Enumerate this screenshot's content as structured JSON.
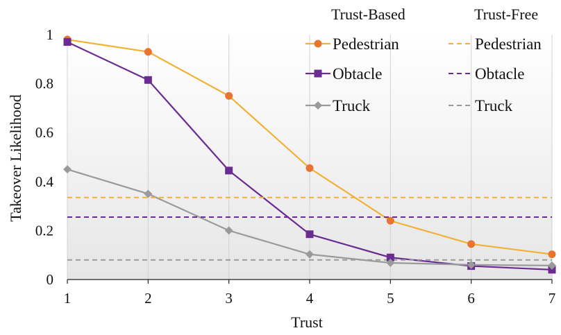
{
  "chart_data": {
    "type": "line",
    "xlabel": "Trust",
    "ylabel": "Takeover Likelihood",
    "x": [
      1,
      2,
      3,
      4,
      5,
      6,
      7
    ],
    "xlim": [
      1,
      7
    ],
    "ylim": [
      0,
      1
    ],
    "x_ticks": [
      "1",
      "2",
      "3",
      "4",
      "5",
      "6",
      "7"
    ],
    "y_ticks": [
      {
        "value": 0,
        "label": "0"
      },
      {
        "value": 0.2,
        "label": "0.2"
      },
      {
        "value": 0.4,
        "label": "0.4"
      },
      {
        "value": 0.6,
        "label": "0.6"
      },
      {
        "value": 0.8,
        "label": "0.8"
      },
      {
        "value": 1,
        "label": "1"
      }
    ],
    "grid": "vertical",
    "legend": {
      "trust_based_heading": "Trust-Based",
      "trust_free_heading": "Trust-Free",
      "placement": "top-right"
    },
    "series": [
      {
        "name": "Pedestrian",
        "group": "Trust-Based",
        "style": "solid",
        "marker": "circle",
        "color": "#F2B134",
        "marker_color": "#E8742F",
        "values": [
          0.98,
          0.93,
          0.75,
          0.455,
          0.24,
          0.145,
          0.103
        ]
      },
      {
        "name": "Obtacle",
        "group": "Trust-Based",
        "style": "solid",
        "marker": "square",
        "color": "#6A2C91",
        "marker_color": "#6A2C91",
        "values": [
          0.97,
          0.815,
          0.445,
          0.185,
          0.09,
          0.055,
          0.04
        ]
      },
      {
        "name": "Truck",
        "group": "Trust-Based",
        "style": "solid",
        "marker": "diamond",
        "color": "#9A9A9A",
        "marker_color": "#9A9A9A",
        "values": [
          0.45,
          0.35,
          0.2,
          0.103,
          0.068,
          0.06,
          0.057
        ]
      },
      {
        "name": "Pedestrian",
        "group": "Trust-Free",
        "style": "dashed",
        "marker": "none",
        "color": "#F2B134",
        "values": [
          0.335,
          0.335,
          0.335,
          0.335,
          0.335,
          0.335,
          0.335
        ]
      },
      {
        "name": "Obtacle",
        "group": "Trust-Free",
        "style": "dashed",
        "marker": "none",
        "color": "#6A2C91",
        "values": [
          0.255,
          0.255,
          0.255,
          0.255,
          0.255,
          0.255,
          0.255
        ]
      },
      {
        "name": "Truck",
        "group": "Trust-Free",
        "style": "dashed",
        "marker": "none",
        "color": "#9A9A9A",
        "values": [
          0.08,
          0.08,
          0.08,
          0.08,
          0.08,
          0.08,
          0.08
        ]
      }
    ]
  }
}
